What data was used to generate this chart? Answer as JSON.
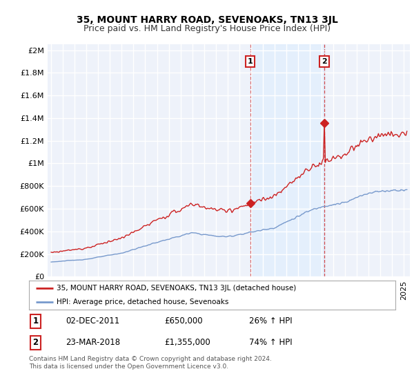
{
  "title": "35, MOUNT HARRY ROAD, SEVENOAKS, TN13 3JL",
  "subtitle": "Price paid vs. HM Land Registry's House Price Index (HPI)",
  "ylabel_ticks": [
    "£0",
    "£200K",
    "£400K",
    "£600K",
    "£800K",
    "£1M",
    "£1.2M",
    "£1.4M",
    "£1.6M",
    "£1.8M",
    "£2M"
  ],
  "ytick_values": [
    0,
    200000,
    400000,
    600000,
    800000,
    1000000,
    1200000,
    1400000,
    1600000,
    1800000,
    2000000
  ],
  "ylim": [
    0,
    2050000
  ],
  "xlim_start": 1994.7,
  "xlim_end": 2025.5,
  "background_color": "#ffffff",
  "plot_bg_color": "#eef2fa",
  "grid_color": "#ffffff",
  "hpi_color": "#7799cc",
  "price_color": "#cc2222",
  "sale1_date": 2011.92,
  "sale1_price": 650000,
  "sale2_date": 2018.23,
  "sale2_price": 1355000,
  "sale1_label": "1",
  "sale2_label": "2",
  "legend_price_label": "35, MOUNT HARRY ROAD, SEVENOAKS, TN13 3JL (detached house)",
  "legend_hpi_label": "HPI: Average price, detached house, Sevenoaks",
  "annotation1_date": "02-DEC-2011",
  "annotation1_price": "£650,000",
  "annotation1_hpi": "26% ↑ HPI",
  "annotation2_date": "23-MAR-2018",
  "annotation2_price": "£1,355,000",
  "annotation2_hpi": "74% ↑ HPI",
  "footnote": "Contains HM Land Registry data © Crown copyright and database right 2024.\nThis data is licensed under the Open Government Licence v3.0.",
  "shade_x1_start": 2011.92,
  "shade_x1_end": 2018.23,
  "title_fontsize": 10,
  "subtitle_fontsize": 9,
  "tick_fontsize": 8
}
